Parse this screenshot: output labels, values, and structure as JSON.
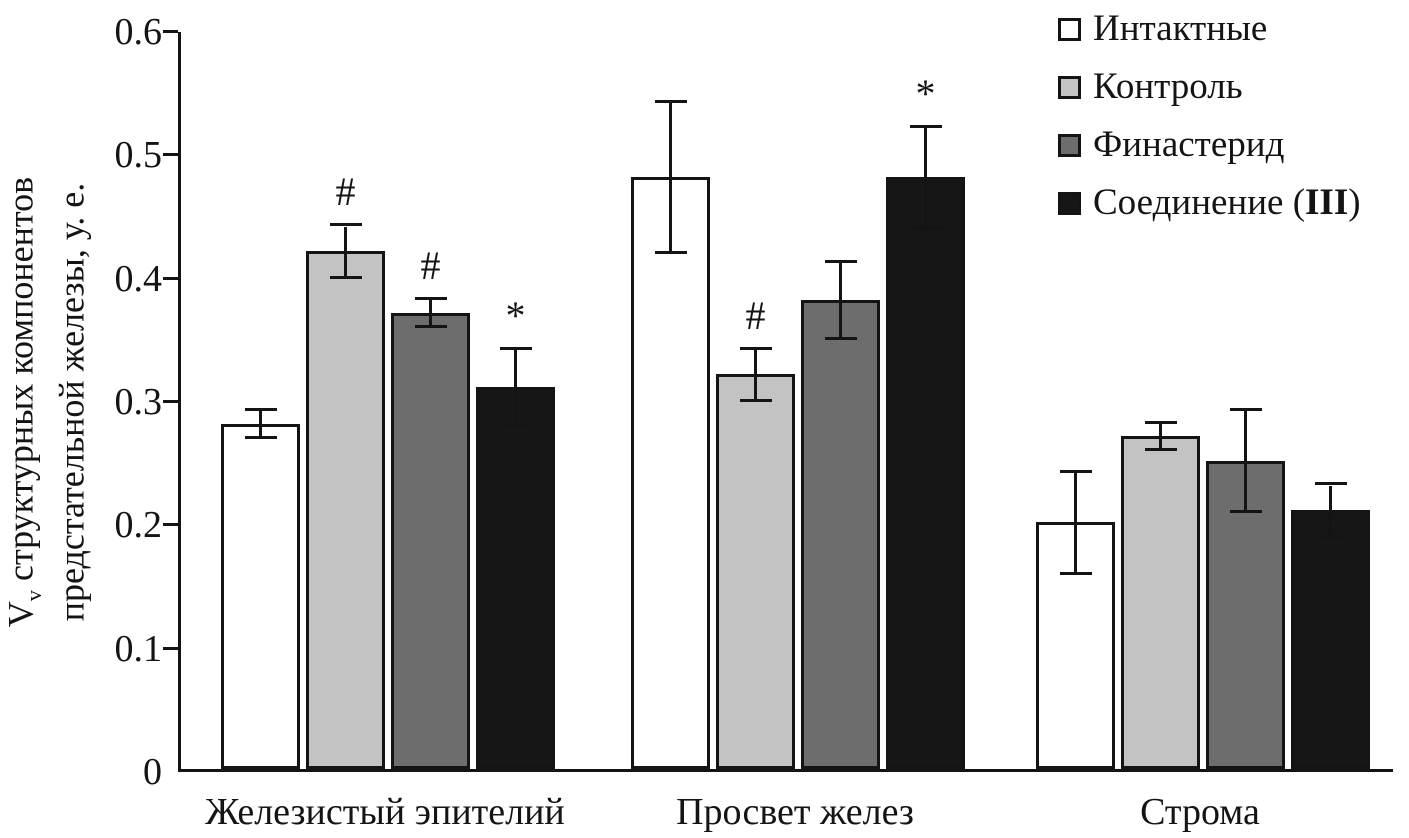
{
  "chart_data": {
    "type": "bar",
    "title": "",
    "ylabel": {
      "v": "V",
      "v_sub": "v",
      "line1_rest": " структурных компонентов",
      "line2": "предстательной железы, у. е."
    },
    "ylim": [
      0,
      0.6
    ],
    "yticks": [
      {
        "value": 0,
        "label": "0"
      },
      {
        "value": 0.1,
        "label": "0.1"
      },
      {
        "value": 0.2,
        "label": "0.2"
      },
      {
        "value": 0.3,
        "label": "0.3"
      },
      {
        "value": 0.4,
        "label": "0.4"
      },
      {
        "value": 0.5,
        "label": "0.5"
      },
      {
        "value": 0.6,
        "label": "0.6"
      }
    ],
    "categories": [
      "Железистый эпителий",
      "Просвет желез",
      "Строма"
    ],
    "series": [
      {
        "name": "Интактные",
        "color": "#ffffff",
        "values": [
          0.28,
          0.48,
          0.2
        ],
        "errors": [
          0.01,
          0.06,
          0.04
        ],
        "annotations": [
          "",
          "",
          ""
        ]
      },
      {
        "name": "Контроль",
        "color": "#c3c3c3",
        "values": [
          0.42,
          0.32,
          0.27
        ],
        "errors": [
          0.02,
          0.02,
          0.01
        ],
        "annotations": [
          "#",
          "#",
          ""
        ]
      },
      {
        "name": "Финастерид",
        "color": "#6d6d6d",
        "values": [
          0.37,
          0.38,
          0.25
        ],
        "errors": [
          0.01,
          0.03,
          0.04
        ],
        "annotations": [
          "#",
          "",
          ""
        ]
      },
      {
        "name": "Соединение (III)",
        "name_parts": {
          "pre": "Соединение (",
          "bold": "III",
          "post": ")"
        },
        "color": "#161616",
        "values": [
          0.31,
          0.48,
          0.21
        ],
        "errors": [
          0.03,
          0.04,
          0.02
        ],
        "annotations": [
          "*",
          "*",
          ""
        ]
      }
    ],
    "legend_position": "top-right",
    "grid": false,
    "axis_color": "#141414"
  }
}
